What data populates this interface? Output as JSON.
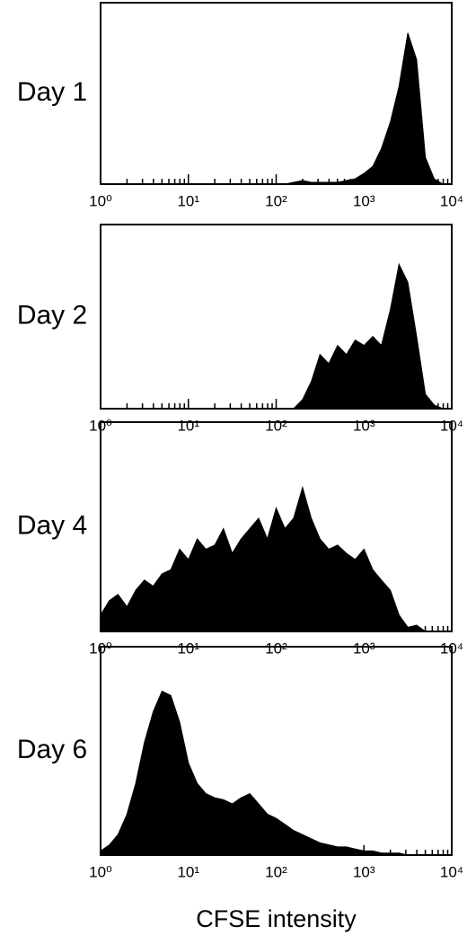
{
  "chart_data": [
    {
      "type": "area",
      "label": "Day 1",
      "color": "#000000",
      "log_x": true,
      "xlim": [
        1,
        10000
      ],
      "xticks": [
        {
          "value": 1,
          "label": "10⁰"
        },
        {
          "value": 10,
          "label": "10¹"
        },
        {
          "value": 100,
          "label": "10²"
        },
        {
          "value": 1000,
          "label": "10³"
        },
        {
          "value": 10000,
          "label": "10⁴"
        }
      ],
      "minor_xticks": [
        2,
        3,
        4,
        5,
        6,
        7,
        8,
        9,
        20,
        30,
        40,
        50,
        60,
        70,
        80,
        90,
        200,
        300,
        400,
        500,
        600,
        700,
        800,
        900,
        2000,
        3000,
        4000,
        5000,
        6000,
        7000,
        8000,
        9000
      ],
      "ylim": [
        0,
        100
      ],
      "x": [
        1,
        1.26,
        1.58,
        2,
        2.51,
        3.16,
        3.98,
        5.01,
        6.31,
        7.94,
        10,
        12.6,
        15.8,
        20,
        25.1,
        31.6,
        39.8,
        50.1,
        63.1,
        79.4,
        100,
        126,
        158,
        200,
        251,
        316,
        398,
        501,
        631,
        794,
        1000,
        1260,
        1580,
        2000,
        2510,
        3160,
        3980,
        5010,
        6310,
        7940,
        10000
      ],
      "values": [
        0,
        0,
        0,
        0,
        0,
        0,
        0,
        0,
        0,
        0,
        0,
        0,
        0,
        0,
        0,
        0,
        0,
        0,
        0,
        0,
        0,
        0,
        1,
        2,
        1,
        1,
        1,
        1,
        2,
        3,
        6,
        10,
        20,
        35,
        55,
        85,
        70,
        15,
        3,
        0,
        0
      ]
    },
    {
      "type": "area",
      "label": "Day 2",
      "color": "#000000",
      "log_x": true,
      "xlim": [
        1,
        10000
      ],
      "xticks": [
        {
          "value": 1,
          "label": "10⁰"
        },
        {
          "value": 10,
          "label": "10¹"
        },
        {
          "value": 100,
          "label": "10²"
        },
        {
          "value": 1000,
          "label": "10³"
        },
        {
          "value": 10000,
          "label": "10⁴"
        }
      ],
      "minor_xticks": [
        2,
        3,
        4,
        5,
        6,
        7,
        8,
        9,
        20,
        30,
        40,
        50,
        60,
        70,
        80,
        90,
        200,
        300,
        400,
        500,
        600,
        700,
        800,
        900,
        2000,
        3000,
        4000,
        5000,
        6000,
        7000,
        8000,
        9000
      ],
      "ylim": [
        0,
        100
      ],
      "x": [
        1,
        1.26,
        1.58,
        2,
        2.51,
        3.16,
        3.98,
        5.01,
        6.31,
        7.94,
        10,
        12.6,
        15.8,
        20,
        25.1,
        31.6,
        39.8,
        50.1,
        63.1,
        79.4,
        100,
        126,
        158,
        200,
        251,
        316,
        398,
        501,
        631,
        794,
        1000,
        1260,
        1580,
        2000,
        2510,
        3160,
        3980,
        5010,
        6310,
        7940,
        10000
      ],
      "values": [
        0,
        0,
        0,
        0,
        0,
        0,
        0,
        0,
        0,
        0,
        0,
        0,
        0,
        0,
        0,
        0,
        0,
        0,
        0,
        0,
        0,
        0,
        0,
        5,
        15,
        30,
        25,
        35,
        30,
        38,
        35,
        40,
        35,
        55,
        80,
        70,
        40,
        8,
        2,
        0,
        0
      ]
    },
    {
      "type": "area",
      "label": "Day 4",
      "color": "#000000",
      "log_x": true,
      "xlim": [
        1,
        10000
      ],
      "xticks": [
        {
          "value": 1,
          "label": "10⁰"
        },
        {
          "value": 10,
          "label": "10¹"
        },
        {
          "value": 100,
          "label": "10²"
        },
        {
          "value": 1000,
          "label": "10³"
        },
        {
          "value": 10000,
          "label": "10⁴"
        }
      ],
      "minor_xticks": [
        2,
        3,
        4,
        5,
        6,
        7,
        8,
        9,
        20,
        30,
        40,
        50,
        60,
        70,
        80,
        90,
        200,
        300,
        400,
        500,
        600,
        700,
        800,
        900,
        2000,
        3000,
        4000,
        5000,
        6000,
        7000,
        8000,
        9000
      ],
      "ylim": [
        0,
        100
      ],
      "x": [
        1,
        1.26,
        1.58,
        2,
        2.51,
        3.16,
        3.98,
        5.01,
        6.31,
        7.94,
        10,
        12.6,
        15.8,
        20,
        25.1,
        31.6,
        39.8,
        50.1,
        63.1,
        79.4,
        100,
        126,
        158,
        200,
        251,
        316,
        398,
        501,
        631,
        794,
        1000,
        1260,
        1580,
        2000,
        2510,
        3160,
        3980,
        5010,
        6310,
        7940,
        10000
      ],
      "values": [
        8,
        15,
        18,
        12,
        20,
        25,
        22,
        28,
        30,
        40,
        35,
        45,
        40,
        42,
        50,
        38,
        45,
        50,
        55,
        45,
        60,
        50,
        55,
        70,
        55,
        45,
        40,
        42,
        38,
        35,
        40,
        30,
        25,
        20,
        8,
        2,
        3,
        0,
        0,
        0,
        0
      ]
    },
    {
      "type": "area",
      "label": "Day 6",
      "color": "#000000",
      "log_x": true,
      "xlim": [
        1,
        10000
      ],
      "xticks": [
        {
          "value": 1,
          "label": "10⁰"
        },
        {
          "value": 10,
          "label": "10¹"
        },
        {
          "value": 100,
          "label": "10²"
        },
        {
          "value": 1000,
          "label": "10³"
        },
        {
          "value": 10000,
          "label": "10⁴"
        }
      ],
      "minor_xticks": [
        2,
        3,
        4,
        5,
        6,
        7,
        8,
        9,
        20,
        30,
        40,
        50,
        60,
        70,
        80,
        90,
        200,
        300,
        400,
        500,
        600,
        700,
        800,
        900,
        2000,
        3000,
        4000,
        5000,
        6000,
        7000,
        8000,
        9000
      ],
      "ylim": [
        0,
        100
      ],
      "xlabel": "CFSE intensity",
      "x": [
        1,
        1.26,
        1.58,
        2,
        2.51,
        3.16,
        3.98,
        5.01,
        6.31,
        7.94,
        10,
        12.6,
        15.8,
        20,
        25.1,
        31.6,
        39.8,
        50.1,
        63.1,
        79.4,
        100,
        126,
        158,
        200,
        251,
        316,
        398,
        501,
        631,
        794,
        1000,
        1260,
        1580,
        2000,
        2510,
        3160,
        3980,
        5010,
        6310,
        7940,
        10000
      ],
      "values": [
        2,
        5,
        10,
        20,
        35,
        55,
        70,
        80,
        78,
        65,
        45,
        35,
        30,
        28,
        27,
        25,
        28,
        30,
        25,
        20,
        18,
        15,
        12,
        10,
        8,
        6,
        5,
        4,
        4,
        3,
        2,
        2,
        1,
        1,
        1,
        0,
        0,
        0,
        0,
        0,
        0
      ]
    }
  ]
}
